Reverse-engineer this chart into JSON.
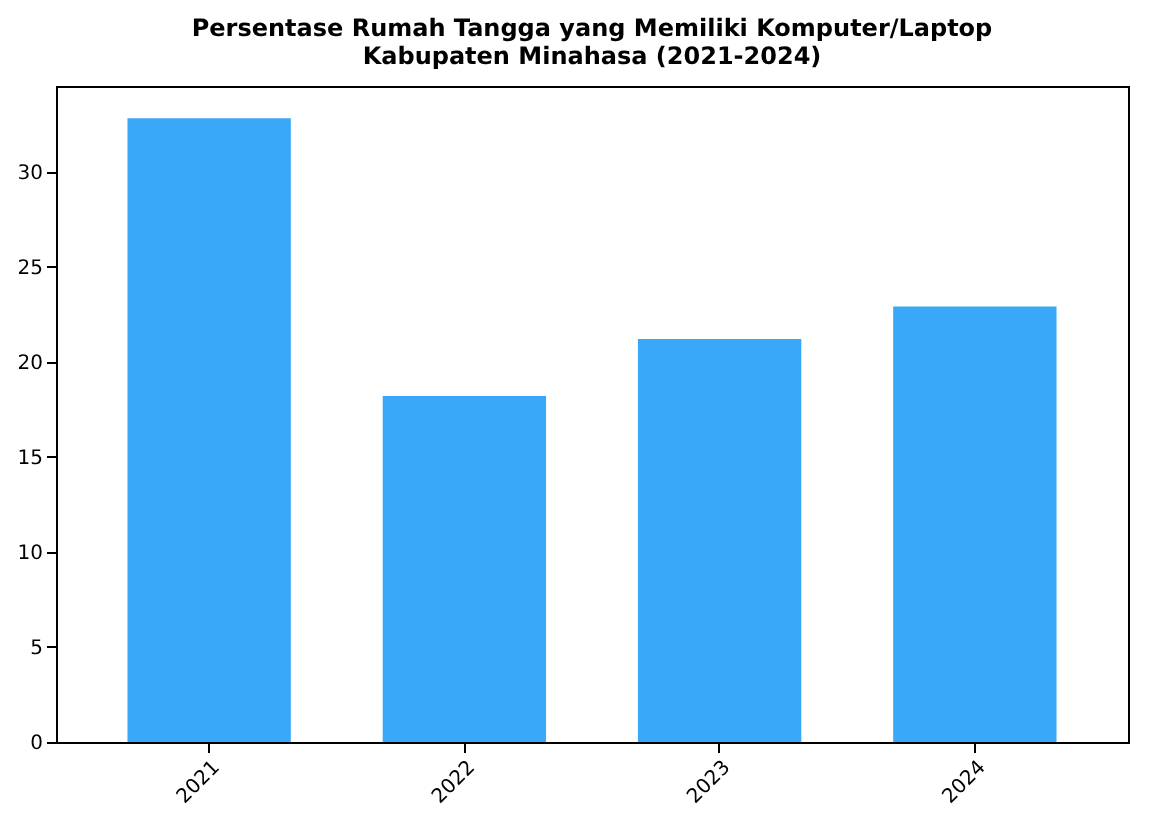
{
  "chart_data": {
    "type": "bar",
    "title": "Persentase Rumah Tangga yang Memiliki Komputer/Laptop\nKabupaten Minahasa (2021-2024)",
    "categories": [
      "2021",
      "2022",
      "2023",
      "2024"
    ],
    "values": [
      32.8,
      18.2,
      21.2,
      22.9
    ],
    "color": "#3aa8f8",
    "ylim": [
      0,
      34.5
    ],
    "yticks": [
      0,
      5,
      10,
      15,
      20,
      25,
      30
    ],
    "grid": false
  }
}
